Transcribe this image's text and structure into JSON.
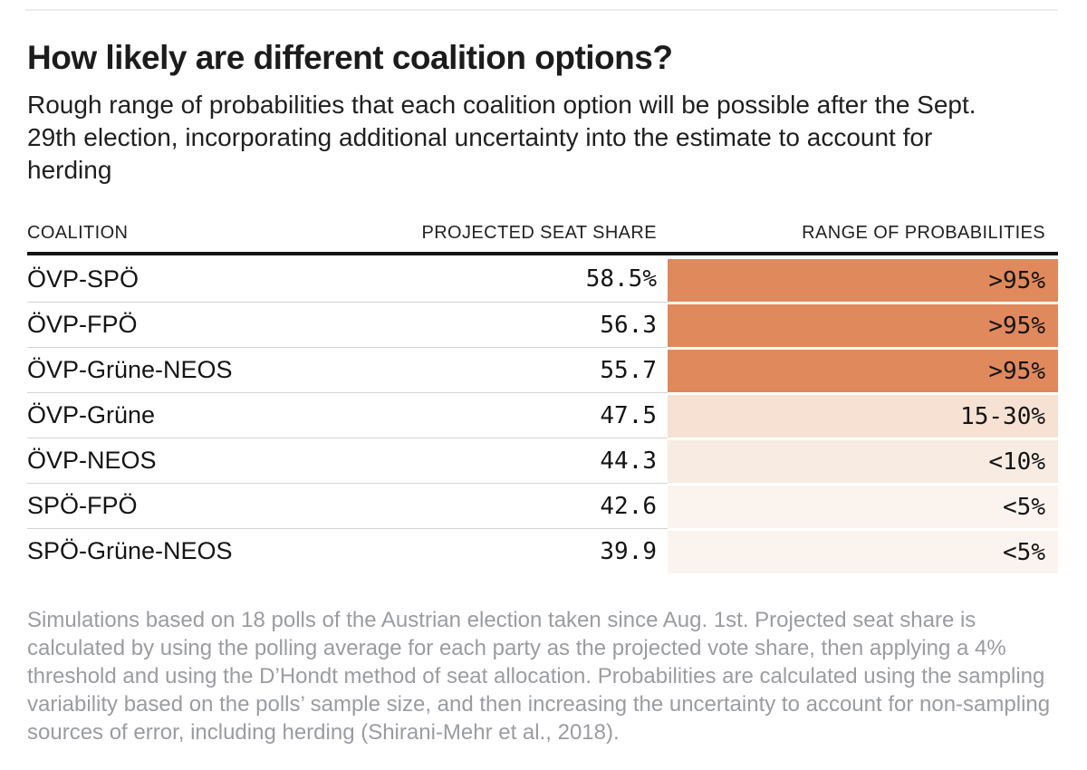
{
  "page": {
    "title": "How likely are different coalition options?",
    "subtitle": "Rough range of probabilities that each coalition option will be possible after the Sept. 29th election, incorporating additional uncertainty into the estimate to account for herding",
    "footnote": "Simulations based on 18 polls of the Austrian election taken since Aug. 1st. Projected seat share is calculated by using the polling average for each party as the projected vote share, then applying a 4% threshold and using the D’Hondt method of seat allocation. Probabilities are calculated using the sampling variability based on the polls’ sample size, and then increasing the uncertainty to account for non-sampling sources of error, including herding (Shirani-Mehr et al., 2018)."
  },
  "table": {
    "headers": [
      "COALITION",
      "PROJECTED SEAT SHARE",
      "RANGE OF PROBABILITIES"
    ],
    "rows": [
      {
        "coalition": "ÖVP-SPÖ",
        "seat_share": "58.5%",
        "probability": ">95%",
        "cell_color": "#E0895C"
      },
      {
        "coalition": "ÖVP-FPÖ",
        "seat_share": "56.3",
        "probability": ">95%",
        "cell_color": "#E0895C"
      },
      {
        "coalition": "ÖVP-Grüne-NEOS",
        "seat_share": "55.7",
        "probability": ">95%",
        "cell_color": "#E0895C"
      },
      {
        "coalition": "ÖVP-Grüne",
        "seat_share": "47.5",
        "probability": "15-30%",
        "cell_color": "#F6E1D3"
      },
      {
        "coalition": "ÖVP-NEOS",
        "seat_share": "44.3",
        "probability": "<10%",
        "cell_color": "#F8EBE2"
      },
      {
        "coalition": "SPÖ-FPÖ",
        "seat_share": "42.6",
        "probability": "<5%",
        "cell_color": "#FBF4EE"
      },
      {
        "coalition": "SPÖ-Grüne-NEOS",
        "seat_share": "39.9",
        "probability": "<5%",
        "cell_color": "#FBF4EE"
      }
    ]
  },
  "colors": {
    "prob_above_95": "#E0895C",
    "prob_15_30": "#F6E1D3",
    "prob_below_10": "#F8EBE2",
    "prob_below_5": "#FBF4EE",
    "header_rule": "#141414",
    "row_divider": "#D4D4D4",
    "top_rule": "#ECECEC",
    "footnote_text": "#9A9CA1"
  },
  "chart_data": {
    "type": "table",
    "title": "How likely are different coalition options?",
    "subtitle": "Rough range of probabilities that each coalition option will be possible after the Sept. 29th election, incorporating additional uncertainty into the estimate to account for herding",
    "columns": [
      "Coalition",
      "Projected seat share (%)",
      "Range of probabilities"
    ],
    "rows": [
      [
        "ÖVP-SPÖ",
        58.5,
        ">95%"
      ],
      [
        "ÖVP-FPÖ",
        56.3,
        ">95%"
      ],
      [
        "ÖVP-Grüne-NEOS",
        55.7,
        ">95%"
      ],
      [
        "ÖVP-Grüne",
        47.5,
        "15-30%"
      ],
      [
        "ÖVP-NEOS",
        44.3,
        "<10%"
      ],
      [
        "SPÖ-FPÖ",
        42.6,
        "<5%"
      ],
      [
        "SPÖ-Grüne-NEOS",
        39.9,
        "<5%"
      ]
    ],
    "notes": "Simulations based on 18 polls of the Austrian election taken since Aug. 1st. Projected seat share is calculated by using the polling average for each party as the projected vote share, then applying a 4% threshold and using the D’Hondt method of seat allocation. Probabilities are calculated using the sampling variability based on the polls’ sample size, and then increasing the uncertainty to account for non-sampling sources of error, including herding (Shirani-Mehr et al., 2018).",
    "layout_hints": {
      "probability_cell_shading": "darker orange = higher probability",
      "legend": "none",
      "grid": "horizontal row dividers"
    }
  }
}
